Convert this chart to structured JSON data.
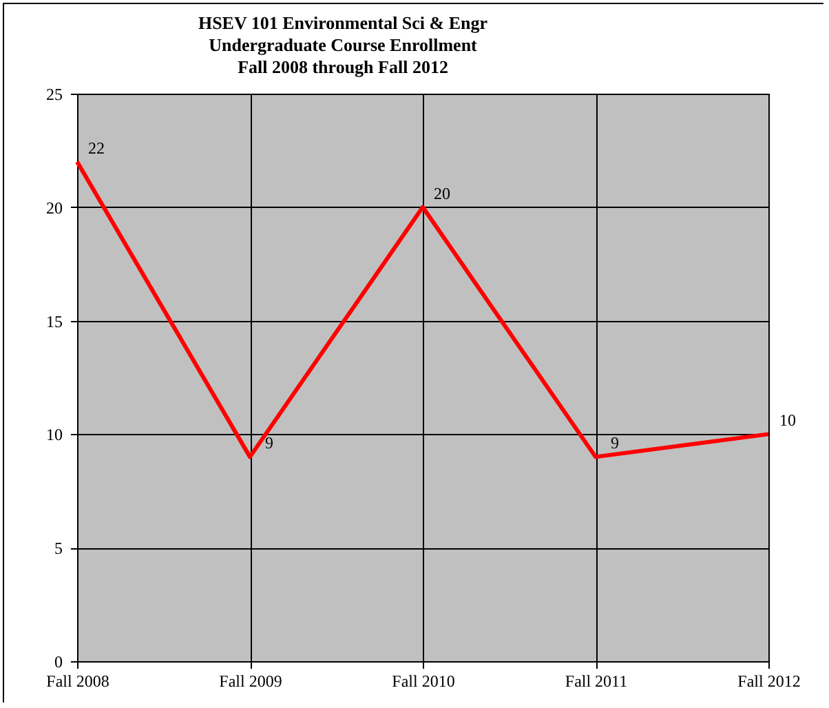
{
  "chart_data": {
    "type": "line",
    "title": [
      "HSEV 101 Environmental Sci & Engr",
      "Undergraduate Course Enrollment",
      "Fall 2008 through Fall 2012"
    ],
    "categories": [
      "Fall 2008",
      "Fall 2009",
      "Fall 2010",
      "Fall 2011",
      "Fall 2012"
    ],
    "series": [
      {
        "color": "#ff0000",
        "values": [
          22,
          9,
          20,
          9,
          10
        ]
      }
    ],
    "ylim": [
      0,
      25
    ],
    "yticks": [
      0,
      5,
      10,
      15,
      20,
      25
    ],
    "grid": true,
    "data_labels": true
  }
}
